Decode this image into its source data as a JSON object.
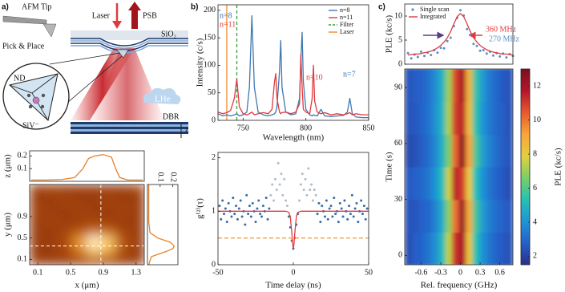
{
  "panel_labels": [
    "a)",
    "b)",
    "c)"
  ],
  "schematic": {
    "afm_tip": "AFM Tip",
    "pick_place": "Pick & Place",
    "laser": "Laser",
    "psb": "PSB",
    "sio2": "SiO₂",
    "nd": "ND",
    "siv": "SiV⁻",
    "lhe": "LHe",
    "dbr": "DBR",
    "z": "z"
  },
  "chart_data": [
    {
      "type": "heatmap",
      "xlabel": "x (μm)",
      "ylabel": "y (μm)",
      "xlim": [
        0,
        1.4
      ],
      "ylim": [
        0,
        1.5
      ],
      "xticks": [
        0.1,
        0.5,
        0.9,
        1.3
      ],
      "yticks": [
        0.1,
        0.5,
        0.9
      ],
      "zlim": [
        0,
        0.22
      ],
      "colormap": [
        "#8a3005",
        "#b04d0c",
        "#d6761a",
        "#f0a83c",
        "#fcdc8a",
        "#ffffff"
      ],
      "z": [
        [
          0.02,
          0.02,
          0.02,
          0.03,
          0.05,
          0.04,
          0.02,
          0.02
        ],
        [
          0.02,
          0.02,
          0.04,
          0.1,
          0.17,
          0.14,
          0.05,
          0.02
        ],
        [
          0.02,
          0.02,
          0.04,
          0.12,
          0.2,
          0.16,
          0.05,
          0.02
        ],
        [
          0.02,
          0.02,
          0.03,
          0.05,
          0.07,
          0.06,
          0.03,
          0.02
        ],
        [
          0.02,
          0.03,
          0.02,
          0.02,
          0.03,
          0.02,
          0.02,
          0.02
        ],
        [
          0.03,
          0.02,
          0.02,
          0.03,
          0.02,
          0.02,
          0.03,
          0.02
        ],
        [
          0.02,
          0.02,
          0.03,
          0.02,
          0.02,
          0.03,
          0.02,
          0.02
        ],
        [
          0.02,
          0.03,
          0.02,
          0.02,
          0.02,
          0.02,
          0.02,
          0.03
        ]
      ],
      "cut_x": 0.87,
      "cut_y": 0.35,
      "cut_color": "#ffffff",
      "profile_color": "#e8822a",
      "profile_label": "z (μm)",
      "profile_lim": [
        0,
        0.24
      ],
      "profile_ticks": [
        0.1,
        0.2
      ],
      "top_profile": {
        "x": [
          0.02,
          0.2,
          0.4,
          0.55,
          0.65,
          0.72,
          0.8,
          0.9,
          1.0,
          1.05,
          1.1,
          1.2,
          1.38
        ],
        "values": [
          0.01,
          0.01,
          0.015,
          0.03,
          0.1,
          0.18,
          0.2,
          0.21,
          0.19,
          0.1,
          0.03,
          0.01,
          0.01
        ]
      },
      "right_profile": {
        "y": [
          0,
          0.15,
          0.25,
          0.3,
          0.35,
          0.42,
          0.5,
          0.6,
          0.8,
          1.0,
          1.5
        ],
        "values": [
          0.01,
          0.03,
          0.15,
          0.2,
          0.21,
          0.18,
          0.08,
          0.02,
          0.01,
          0.01,
          0.01
        ]
      }
    },
    {
      "type": "line",
      "xlabel": "Wavelength (nm)",
      "ylabel": "Intensity (c/s)",
      "xlim": [
        730,
        850
      ],
      "ylim": [
        0,
        210
      ],
      "xticks": [
        750,
        800,
        850
      ],
      "yticks": [
        0,
        50,
        100,
        150,
        200
      ],
      "x": [
        730,
        734,
        737,
        740,
        743,
        745,
        747,
        750,
        753,
        755,
        757,
        759,
        762,
        766,
        770,
        773,
        775,
        776,
        777,
        779,
        780,
        781,
        784,
        788,
        792,
        795,
        796,
        797,
        798,
        800,
        803,
        805,
        806,
        807,
        809,
        812,
        815,
        820,
        825,
        830,
        833,
        835,
        837,
        840,
        845,
        850
      ],
      "series": [
        {
          "name": "n=8",
          "color": "#3f78b0",
          "values": [
            12,
            8,
            10,
            8,
            10,
            12,
            8,
            10,
            15,
            60,
            190,
            60,
            15,
            10,
            8,
            10,
            12,
            15,
            25,
            90,
            145,
            60,
            15,
            10,
            12,
            40,
            110,
            160,
            70,
            20,
            10,
            8,
            10,
            9,
            8,
            20,
            8,
            7,
            8,
            9,
            15,
            40,
            12,
            6,
            5,
            5
          ]
        },
        {
          "name": "n=11",
          "color": "#e03a3e",
          "values": [
            15,
            12,
            14,
            18,
            40,
            75,
            25,
            12,
            10,
            12,
            15,
            10,
            12,
            14,
            12,
            20,
            70,
            85,
            40,
            15,
            12,
            14,
            15,
            12,
            15,
            30,
            120,
            60,
            20,
            15,
            12,
            40,
            100,
            35,
            15,
            12,
            14,
            10,
            12,
            10,
            12,
            14,
            10,
            12,
            10,
            10
          ]
        }
      ],
      "markers": [
        {
          "name": "Filter",
          "color": "#3a9e3a",
          "x": 745,
          "dash": true
        },
        {
          "name": "Laser",
          "color": "#f28c28",
          "x": 737,
          "dash": false
        }
      ],
      "annotations": [
        {
          "text": "n=8",
          "color": "#3f78b0"
        },
        {
          "text": "n=11",
          "color": "#e03a3e"
        },
        {
          "text": "n=10",
          "color": "#e03a3e"
        },
        {
          "text": "n=7",
          "color": "#3f78b0"
        }
      ]
    },
    {
      "type": "scatter",
      "xlabel": "Time delay (ns)",
      "ylabel": "g⁽²⁾(τ)",
      "xlim": [
        -50,
        50
      ],
      "ylim": [
        0,
        2.1
      ],
      "xticks": [
        -50,
        0,
        50
      ],
      "yticks": [
        0,
        1,
        2
      ],
      "series": [
        {
          "color": "#3a6ea5",
          "style": "dots",
          "x": [
            -49,
            -48,
            -47,
            -46,
            -45,
            -44,
            -43,
            -42,
            -41,
            -40,
            -39,
            -38,
            -37,
            -36,
            -35,
            -34,
            -33,
            -32,
            -31,
            -30,
            -29,
            -28,
            -27,
            -26,
            -25,
            -24,
            -23,
            -22,
            -21,
            -20,
            -19,
            -18,
            -17,
            -16,
            -3,
            -2,
            -1,
            0,
            1,
            2,
            3,
            16,
            17,
            18,
            19,
            20,
            21,
            22,
            23,
            24,
            25,
            26,
            27,
            28,
            29,
            30,
            31,
            32,
            33,
            34,
            35,
            36,
            37,
            38,
            39,
            40,
            41,
            42,
            43,
            44,
            45,
            46,
            47,
            48,
            49
          ],
          "values": [
            1.1,
            0.85,
            1.2,
            0.95,
            1.05,
            0.8,
            1.15,
            1.0,
            0.9,
            1.25,
            0.95,
            1.1,
            0.85,
            1.05,
            1.2,
            0.9,
            1.0,
            0.75,
            1.3,
            0.95,
            1.1,
            0.9,
            1.15,
            1.0,
            0.8,
            1.05,
            1.2,
            0.95,
            0.9,
            1.1,
            1.0,
            1.25,
            0.85,
            1.05,
            0.9,
            0.7,
            0.45,
            0.3,
            0.5,
            0.75,
            0.95,
            0.95,
            1.15,
            0.8,
            1.1,
            1.0,
            0.9,
            1.2,
            0.85,
            1.05,
            1.1,
            0.9,
            1.25,
            0.95,
            1.0,
            0.8,
            1.15,
            1.05,
            0.9,
            1.2,
            1.0,
            0.85,
            1.1,
            0.95,
            1.3,
            0.9,
            1.05,
            1.15,
            0.8,
            1.0,
            1.2,
            0.95,
            1.1,
            0.85,
            1.05
          ]
        },
        {
          "color": "#b4bcc8",
          "style": "dots",
          "x": [
            -15,
            -14,
            -13,
            -12,
            -11,
            -10,
            -9,
            -8,
            -7,
            -6,
            -5,
            -4,
            4,
            5,
            6,
            7,
            8,
            9,
            10,
            11,
            12,
            13,
            14,
            15
          ],
          "values": [
            1.3,
            1.5,
            1.2,
            1.6,
            1.4,
            1.9,
            1.5,
            1.7,
            1.3,
            1.6,
            1.2,
            1.1,
            1.2,
            1.5,
            1.7,
            1.4,
            1.6,
            1.3,
            1.8,
            1.4,
            1.5,
            1.2,
            1.4,
            1.3
          ]
        },
        {
          "color": "#e03a3e",
          "style": "line",
          "x": [
            -50,
            -10,
            -5,
            -3,
            -2,
            -1,
            -0.5,
            0,
            0.5,
            1,
            2,
            3,
            5,
            10,
            50
          ],
          "values": [
            1,
            1,
            1,
            0.98,
            0.9,
            0.6,
            0.4,
            0.3,
            0.4,
            0.6,
            0.9,
            0.98,
            1,
            1,
            1
          ]
        }
      ],
      "hlines": [
        {
          "y": 0.5,
          "color": "#f5a040"
        }
      ]
    },
    {
      "type": "scatter",
      "ylabel": "PLE (kc/s)",
      "xlim": [
        -0.85,
        0.8
      ],
      "ylim": [
        0,
        12.5
      ],
      "yticks": [
        0,
        5,
        10
      ],
      "series": [
        {
          "name": "Single scan",
          "color": "#5b8fc4",
          "style": "dots",
          "x": [
            -0.8,
            -0.75,
            -0.7,
            -0.65,
            -0.6,
            -0.55,
            -0.5,
            -0.45,
            -0.4,
            -0.35,
            -0.3,
            -0.25,
            -0.2,
            -0.15,
            -0.1,
            -0.05,
            0,
            0.05,
            0.1,
            0.15,
            0.2,
            0.25,
            0.3,
            0.35,
            0.4,
            0.45,
            0.5,
            0.55,
            0.6,
            0.65,
            0.7,
            0.75,
            0.8
          ],
          "values": [
            2.3,
            1.2,
            2.0,
            1.5,
            2.6,
            1.7,
            2.4,
            1.9,
            2.9,
            2.4,
            3.4,
            3.3,
            4.8,
            5.5,
            7.9,
            9.6,
            11.2,
            10.1,
            7.3,
            6.1,
            4.2,
            3.8,
            2.8,
            2.9,
            2.2,
            2.6,
            1.8,
            2.3,
            1.6,
            2.2,
            1.4,
            2.1,
            1.7
          ]
        },
        {
          "name": "Integrated",
          "color": "#e03a3e",
          "style": "line",
          "x": [
            -0.8,
            -0.75,
            -0.7,
            -0.65,
            -0.6,
            -0.55,
            -0.5,
            -0.45,
            -0.4,
            -0.35,
            -0.3,
            -0.25,
            -0.2,
            -0.15,
            -0.1,
            -0.05,
            0,
            0.05,
            0.1,
            0.15,
            0.2,
            0.25,
            0.3,
            0.35,
            0.4,
            0.45,
            0.5,
            0.55,
            0.6,
            0.65,
            0.7,
            0.75,
            0.8
          ],
          "values": [
            1.9,
            2.0,
            2.1,
            2.1,
            2.2,
            2.4,
            2.5,
            2.7,
            3.0,
            3.4,
            3.9,
            4.6,
            5.5,
            6.8,
            8.4,
            9.9,
            10.5,
            9.9,
            8.4,
            6.8,
            5.5,
            4.6,
            3.9,
            3.4,
            3.0,
            2.7,
            2.5,
            2.4,
            2.2,
            2.1,
            2.1,
            2.0,
            1.9
          ]
        }
      ],
      "annotations": [
        {
          "text": "360 MHz",
          "color": "#e03a3e"
        },
        {
          "text": "270 MHz",
          "color": "#5b8fc4"
        }
      ]
    },
    {
      "type": "heatmap",
      "xlabel": "Rel. frequency (GHz)",
      "ylabel": "Time (s)",
      "xlim": [
        -0.85,
        0.8
      ],
      "ylim": [
        -5,
        100
      ],
      "xticks": [
        -0.6,
        -0.3,
        0,
        0.3,
        0.6
      ],
      "yticks": [
        0,
        30,
        60,
        90
      ],
      "zlim": [
        1.5,
        13
      ],
      "colormap": [
        "#2a2f8c",
        "#2560c9",
        "#1f96d6",
        "#25c1b4",
        "#7bcf66",
        "#e3d03c",
        "#f9a43a",
        "#e85a2c",
        "#b3162b",
        "#7a0f1e"
      ],
      "z": [
        [
          2.3,
          2.7,
          2.9,
          3.3,
          3.9,
          5.1,
          7.4,
          11.2,
          11.9,
          8.3,
          5.4,
          4.0,
          3.3,
          2.9,
          2.6,
          2.4
        ],
        [
          2.5,
          2.5,
          2.8,
          3.0,
          3.6,
          4.7,
          6.8,
          10.1,
          12.3,
          9.0,
          5.8,
          4.3,
          3.5,
          3.1,
          2.8,
          2.6
        ],
        [
          2.6,
          2.8,
          3.0,
          3.3,
          4.0,
          5.2,
          7.6,
          11.5,
          11.0,
          8.1,
          5.3,
          4.0,
          3.3,
          2.9,
          2.6,
          2.3
        ],
        [
          2.2,
          2.4,
          2.7,
          3.1,
          3.7,
          4.8,
          6.6,
          10.3,
          12.6,
          9.2,
          5.9,
          4.4,
          3.6,
          3.1,
          2.7,
          2.5
        ],
        [
          2.4,
          2.6,
          2.9,
          3.2,
          3.9,
          5.0,
          7.2,
          11.0,
          11.5,
          8.5,
          5.5,
          4.1,
          3.4,
          3.0,
          2.7,
          2.4
        ],
        [
          2.5,
          2.7,
          2.8,
          3.2,
          3.8,
          4.9,
          7.0,
          10.8,
          12.0,
          8.7,
          5.6,
          4.2,
          3.4,
          3.0,
          2.6,
          2.5
        ]
      ],
      "colorbar_ticks": [
        2,
        4,
        6,
        8,
        10,
        12
      ],
      "colorbar_label": "PLE (kc/s)"
    }
  ]
}
